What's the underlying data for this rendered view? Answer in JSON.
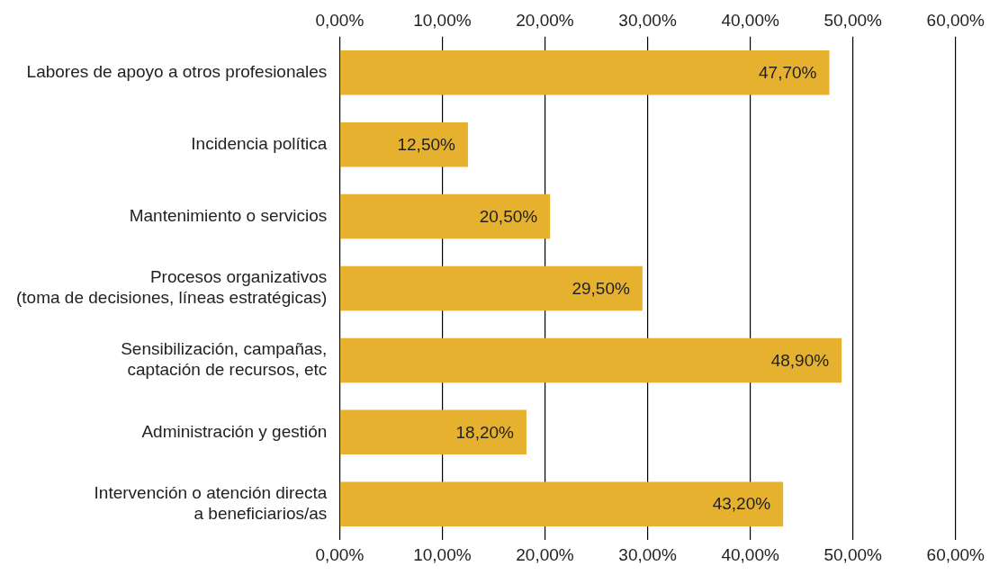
{
  "chart_data": {
    "type": "bar",
    "orientation": "horizontal",
    "categories": [
      "Labores de apoyo a otros profesionales",
      "Incidencia política",
      "Mantenimiento o servicios",
      "Procesos organizativos\n(toma de decisiones, líneas estratégicas)",
      "Sensibilización, campañas,\ncaptación de recursos, etc",
      "Administración y gestión",
      "Intervención o atención directa\na beneficiarios/as"
    ],
    "values": [
      47.7,
      12.5,
      20.5,
      29.5,
      48.9,
      18.2,
      43.2
    ],
    "value_labels": [
      "47,70%",
      "12,50%",
      "20,50%",
      "29,50%",
      "48,90%",
      "18,20%",
      "43,20%"
    ],
    "color": "#e6b12e",
    "xlim": [
      0,
      60
    ],
    "xticks": [
      {
        "value": 0,
        "label": "0,00%"
      },
      {
        "value": 10,
        "label": "10,00%"
      },
      {
        "value": 20,
        "label": "20,00%"
      },
      {
        "value": 30,
        "label": "30,00%"
      },
      {
        "value": 40,
        "label": "40,00%"
      },
      {
        "value": 50,
        "label": "50,00%"
      },
      {
        "value": 60,
        "label": "60,00%"
      }
    ],
    "x2lim": [
      0,
      60
    ],
    "x2ticks": [
      {
        "value": 0,
        "label": "0,00%"
      },
      {
        "value": 10,
        "label": "10,00%"
      },
      {
        "value": 20,
        "label": "20,00%"
      },
      {
        "value": 30,
        "label": "30,00%"
      },
      {
        "value": 40,
        "label": "40,00%"
      },
      {
        "value": 50,
        "label": "50,00%"
      },
      {
        "value": 60,
        "label": "60,00%"
      }
    ],
    "grid": "x",
    "legend": false
  }
}
